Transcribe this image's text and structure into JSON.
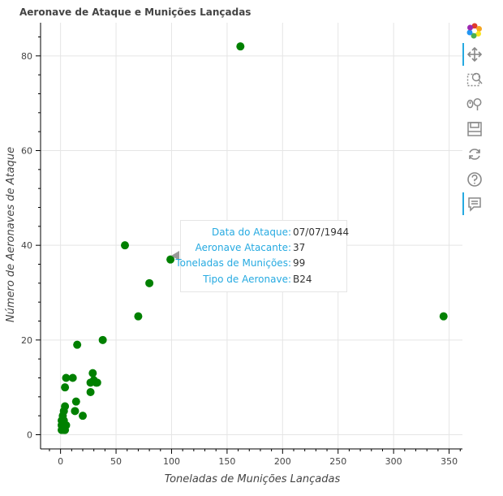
{
  "chart_data": {
    "type": "scatter",
    "title": "Aeronave de Ataque e Munições Lançadas",
    "xlabel": "Toneladas de Munições Lançadas",
    "ylabel": "Número de Aeronaves de Ataque",
    "xlim": [
      -18,
      362
    ],
    "ylim": [
      -3,
      87
    ],
    "x_ticks": [
      0,
      50,
      100,
      150,
      200,
      250,
      300,
      350
    ],
    "y_ticks": [
      0,
      20,
      40,
      60,
      80
    ],
    "marker_color": "#008000",
    "grid": true,
    "points": [
      {
        "x": 162,
        "y": 82
      },
      {
        "x": 345,
        "y": 25
      },
      {
        "x": 58,
        "y": 40
      },
      {
        "x": 99,
        "y": 37
      },
      {
        "x": 80,
        "y": 32
      },
      {
        "x": 70,
        "y": 25
      },
      {
        "x": 38,
        "y": 20
      },
      {
        "x": 15,
        "y": 19
      },
      {
        "x": 29,
        "y": 13
      },
      {
        "x": 5,
        "y": 12
      },
      {
        "x": 11,
        "y": 12
      },
      {
        "x": 27,
        "y": 11
      },
      {
        "x": 30,
        "y": 11.5
      },
      {
        "x": 32,
        "y": 11
      },
      {
        "x": 33,
        "y": 11
      },
      {
        "x": 4,
        "y": 10
      },
      {
        "x": 27,
        "y": 9
      },
      {
        "x": 14,
        "y": 7
      },
      {
        "x": 4,
        "y": 6
      },
      {
        "x": 13,
        "y": 5
      },
      {
        "x": 3,
        "y": 5
      },
      {
        "x": 20,
        "y": 4
      },
      {
        "x": 2,
        "y": 4
      },
      {
        "x": 1,
        "y": 3
      },
      {
        "x": 3,
        "y": 3
      },
      {
        "x": 1,
        "y": 2
      },
      {
        "x": 5,
        "y": 2
      },
      {
        "x": 2,
        "y": 2
      },
      {
        "x": 1,
        "y": 1
      },
      {
        "x": 3,
        "y": 1
      },
      {
        "x": 4,
        "y": 1
      },
      {
        "x": 2,
        "y": 1.5
      }
    ]
  },
  "tooltip": {
    "rows": [
      {
        "key": "Data do Ataque:",
        "value": "07/07/1944"
      },
      {
        "key": "Aeronave Atacante:",
        "value": "37"
      },
      {
        "key": "Toneladas de Munições:",
        "value": "99"
      },
      {
        "key": "Tipo de Aeronave:",
        "value": "B24"
      }
    ]
  },
  "toolbar": {
    "tools": [
      {
        "name": "bokeh-logo-icon",
        "active": false
      },
      {
        "name": "pan-tool-icon",
        "active": true
      },
      {
        "name": "box-zoom-tool-icon",
        "active": false
      },
      {
        "name": "wheel-zoom-tool-icon",
        "active": false
      },
      {
        "name": "save-tool-icon",
        "active": false
      },
      {
        "name": "reset-tool-icon",
        "active": false
      },
      {
        "name": "help-tool-icon",
        "active": false
      },
      {
        "name": "hover-tool-icon",
        "active": true
      }
    ]
  }
}
